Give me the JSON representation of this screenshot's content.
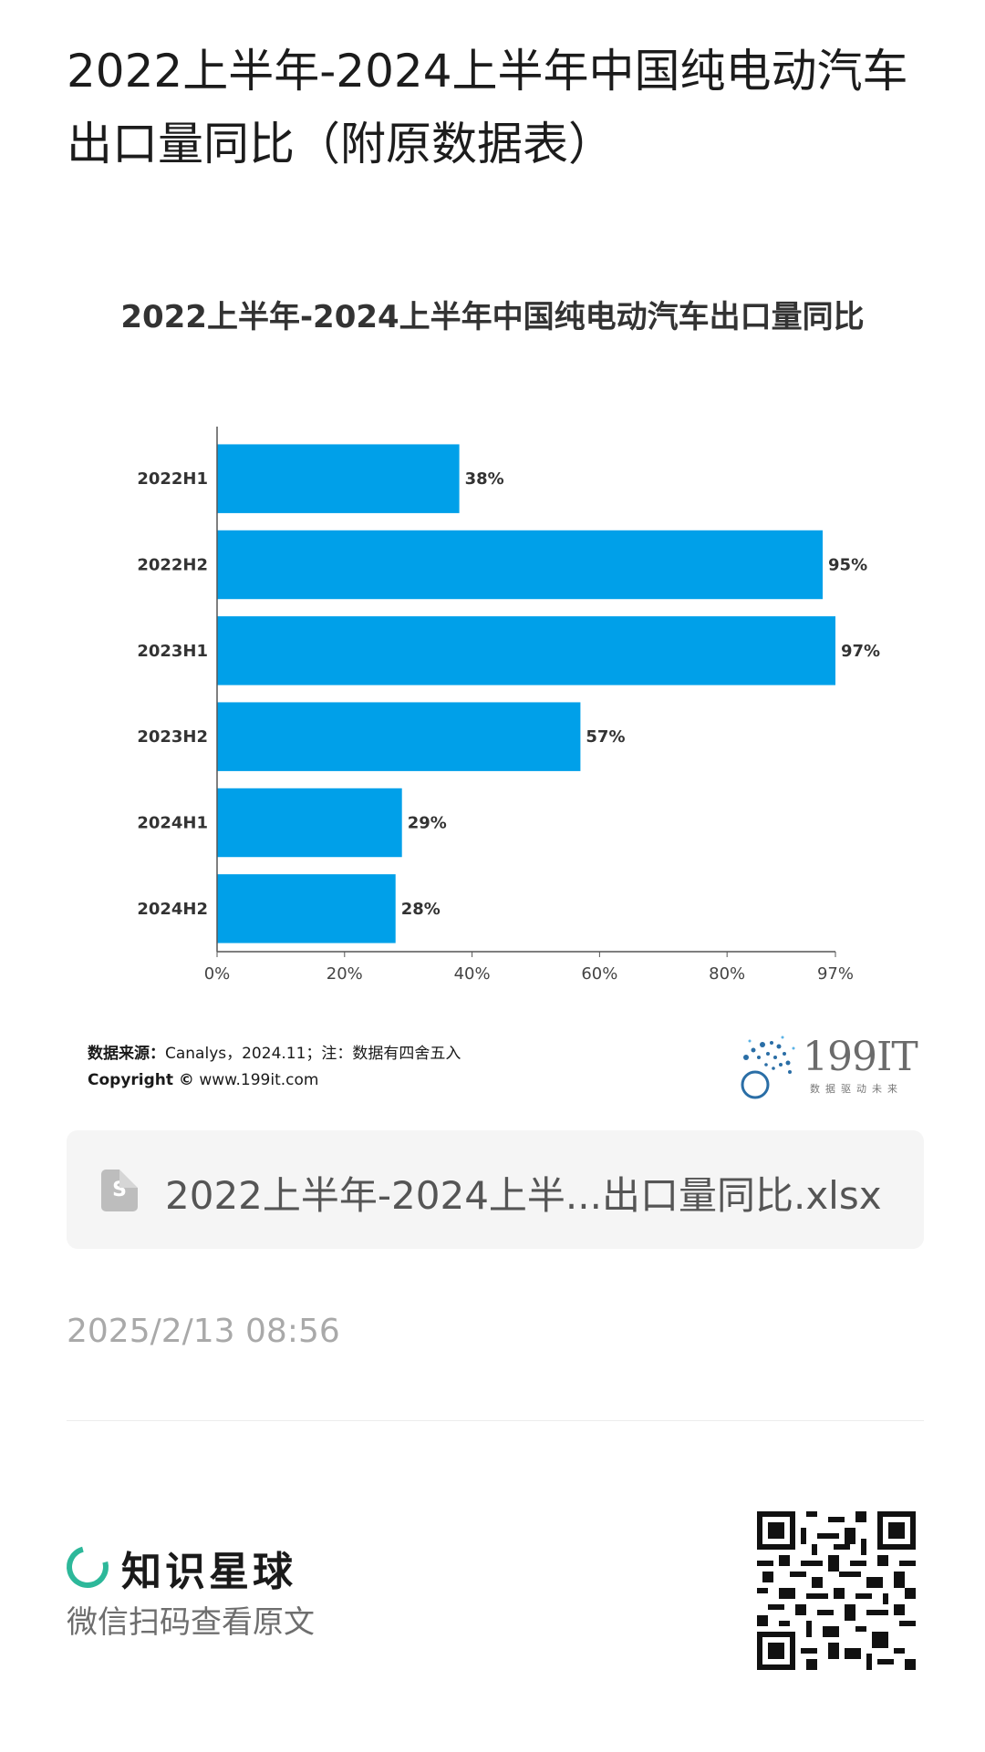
{
  "post": {
    "title": "2022上半年-2024上半年中国纯电动汽车出口量同比（附原数据表）"
  },
  "chart_data": {
    "type": "bar",
    "orientation": "horizontal",
    "title": "2022上半年-2024上半年中国纯电动汽车出口量同比",
    "categories": [
      "2022H1",
      "2022H2",
      "2023H1",
      "2023H2",
      "2024H1",
      "2024H2"
    ],
    "values": [
      38,
      95,
      97,
      57,
      29,
      28
    ],
    "value_labels": [
      "38%",
      "95%",
      "97%",
      "57%",
      "29%",
      "28%"
    ],
    "xlim": [
      0,
      97
    ],
    "x_ticks": [
      0,
      20,
      40,
      60,
      80,
      97
    ],
    "x_tick_labels": [
      "0%",
      "20%",
      "40%",
      "60%",
      "80%",
      "97%"
    ],
    "grid": false,
    "bar_color": "#00a0e9"
  },
  "source": {
    "label": "数据来源：",
    "text": "Canalys，2024.11；注：数据有四舍五入",
    "copyright_label": "Copyright ©",
    "copyright_url": "www.199it.com"
  },
  "brand": {
    "name": "199IT",
    "tagline": "数据驱动未来"
  },
  "file": {
    "icon_letter": "S",
    "name": "2022上半年-2024上半...出口量同比.xlsx"
  },
  "timestamp": "2025/2/13 08:56",
  "footer": {
    "app_name": "知识星球",
    "hint": "微信扫码查看原文"
  }
}
